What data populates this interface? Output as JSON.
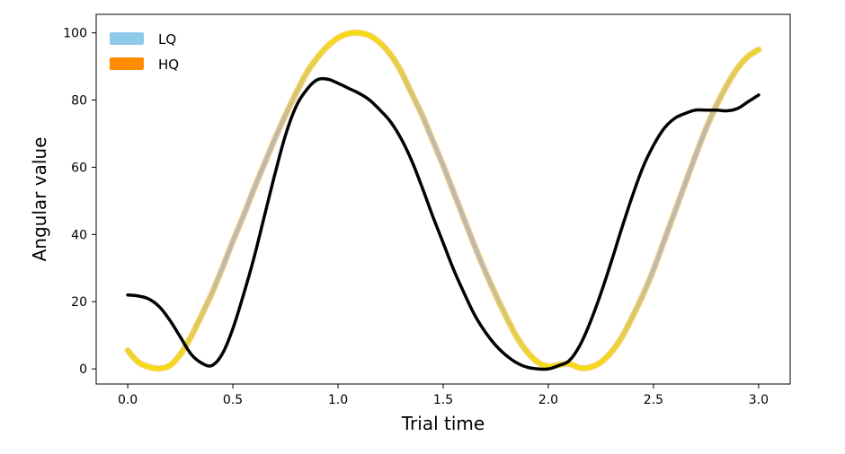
{
  "chart_data": {
    "type": "line",
    "title": "",
    "xlabel": "Trial time",
    "ylabel": "Angular value",
    "xlim": [
      -0.15,
      3.15
    ],
    "ylim": [
      -4.5,
      105.5
    ],
    "xticks": [
      0.0,
      0.5,
      1.0,
      1.5,
      2.0,
      2.5,
      3.0
    ],
    "xtick_labels": [
      "0.0",
      "0.5",
      "1.0",
      "1.5",
      "2.0",
      "2.5",
      "3.0"
    ],
    "yticks": [
      0,
      20,
      40,
      60,
      80,
      100
    ],
    "ytick_labels": [
      "0",
      "20",
      "40",
      "60",
      "80",
      "100"
    ],
    "grid": false,
    "legend": {
      "position": "top-left",
      "entries": [
        {
          "label": "LQ",
          "color": "#8ec9ea"
        },
        {
          "label": "HQ",
          "color": "#ff8c00"
        }
      ]
    },
    "series": [
      {
        "style": "band",
        "colors": {
          "low": "#b9b9b9",
          "high": "#f5dc0f",
          "edge": "#ffa500"
        },
        "x": [
          0.0,
          0.05,
          0.1,
          0.15,
          0.2,
          0.25,
          0.3,
          0.35,
          0.4,
          0.45,
          0.5,
          0.55,
          0.6,
          0.65,
          0.7,
          0.75,
          0.8,
          0.85,
          0.9,
          0.95,
          1.0,
          1.05,
          1.1,
          1.15,
          1.2,
          1.25,
          1.3,
          1.35,
          1.4,
          1.45,
          1.5,
          1.55,
          1.6,
          1.65,
          1.7,
          1.75,
          1.8,
          1.85,
          1.9,
          1.95,
          2.0,
          2.05,
          2.1,
          2.15,
          2.2,
          2.25,
          2.3,
          2.35,
          2.4,
          2.45,
          2.5,
          2.55,
          2.6,
          2.65,
          2.7,
          2.75,
          2.8,
          2.85,
          2.9,
          2.95,
          3.0
        ],
        "y": [
          5.5,
          2.0,
          0.6,
          0.1,
          1.0,
          4.3,
          9.5,
          15.8,
          22.5,
          30.0,
          38.0,
          45.5,
          53.5,
          61.0,
          68.5,
          75.5,
          82.0,
          88.0,
          92.5,
          96.0,
          98.5,
          99.8,
          100.0,
          99.2,
          97.0,
          93.5,
          88.5,
          82.0,
          75.5,
          68.0,
          60.5,
          52.5,
          44.5,
          36.5,
          29.0,
          22.0,
          15.5,
          9.5,
          5.0,
          2.0,
          0.7,
          1.2,
          1.5,
          0.3,
          0.5,
          2.0,
          5.0,
          9.5,
          15.5,
          22.0,
          29.5,
          38.0,
          46.5,
          55.0,
          63.5,
          71.5,
          78.5,
          84.5,
          89.5,
          93.0,
          95.0
        ]
      },
      {
        "style": "black",
        "color": "#000000",
        "x": [
          0.0,
          0.05,
          0.1,
          0.15,
          0.2,
          0.25,
          0.3,
          0.35,
          0.4,
          0.45,
          0.5,
          0.55,
          0.6,
          0.65,
          0.7,
          0.75,
          0.8,
          0.85,
          0.9,
          0.95,
          1.0,
          1.05,
          1.1,
          1.15,
          1.2,
          1.25,
          1.3,
          1.35,
          1.4,
          1.45,
          1.5,
          1.55,
          1.6,
          1.65,
          1.7,
          1.75,
          1.8,
          1.85,
          1.9,
          1.95,
          2.0,
          2.05,
          2.1,
          2.15,
          2.2,
          2.25,
          2.3,
          2.35,
          2.4,
          2.45,
          2.5,
          2.55,
          2.6,
          2.65,
          2.7,
          2.75,
          2.8,
          2.85,
          2.9,
          2.95,
          3.0
        ],
        "y": [
          22.0,
          21.7,
          20.8,
          18.5,
          14.5,
          9.5,
          4.5,
          1.8,
          1.0,
          4.5,
          12.0,
          22.0,
          33.0,
          45.5,
          58.0,
          69.5,
          78.0,
          83.0,
          86.0,
          86.2,
          85.0,
          83.5,
          82.0,
          80.0,
          77.0,
          73.5,
          68.5,
          62.0,
          54.0,
          45.5,
          37.5,
          29.5,
          22.5,
          16.0,
          11.0,
          7.0,
          4.0,
          1.8,
          0.5,
          0.0,
          0.0,
          1.0,
          2.5,
          7.0,
          14.0,
          22.5,
          32.0,
          42.0,
          51.5,
          60.0,
          66.5,
          71.5,
          74.5,
          76.0,
          77.0,
          77.0,
          77.0,
          76.8,
          77.5,
          79.5,
          81.5
        ]
      }
    ]
  }
}
